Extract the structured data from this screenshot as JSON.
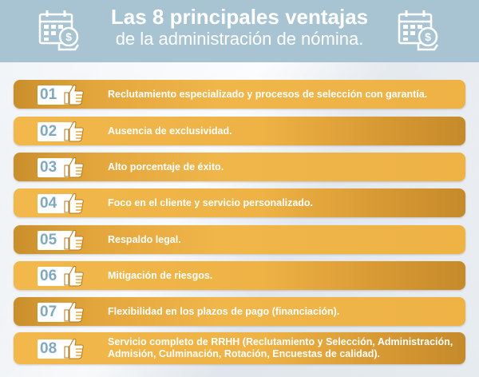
{
  "header": {
    "title_line1": "Las 8 principales ventajas",
    "title_line2": "de la administración de nómina.",
    "left_icon": "calendar-money-icon",
    "right_icon": "calendar-money-icon"
  },
  "items": [
    {
      "number": "01",
      "text": "Reclutamiento especializado y procesos de selección con garantía.",
      "icon": "thumbs-up-icon"
    },
    {
      "number": "02",
      "text": "Ausencia de exclusividad.",
      "icon": "thumbs-up-icon"
    },
    {
      "number": "03",
      "text": "Alto porcentaje de éxito.",
      "icon": "thumbs-up-icon"
    },
    {
      "number": "04",
      "text": "Foco en el cliente y servicio personalizado.",
      "icon": "thumbs-up-icon"
    },
    {
      "number": "05",
      "text": "Respaldo legal.",
      "icon": "thumbs-up-icon"
    },
    {
      "number": "06",
      "text": "Mitigación de riesgos.",
      "icon": "thumbs-up-icon"
    },
    {
      "number": "07",
      "text": "Flexibilidad en los plazos de pago (financiación).",
      "icon": "thumbs-up-icon"
    },
    {
      "number": "08",
      "text": "Servicio completo de RRHH (Reclutamiento y Selección, Administración, Admisión, Culminación, Rotación, Encuestas de calidad).",
      "icon": "thumbs-up-icon"
    }
  ],
  "colors": {
    "header_bg": "#a8c4d2",
    "row_orange": "#eeb245",
    "number_blue": "#7fa9c0",
    "text": "#ffffff"
  }
}
